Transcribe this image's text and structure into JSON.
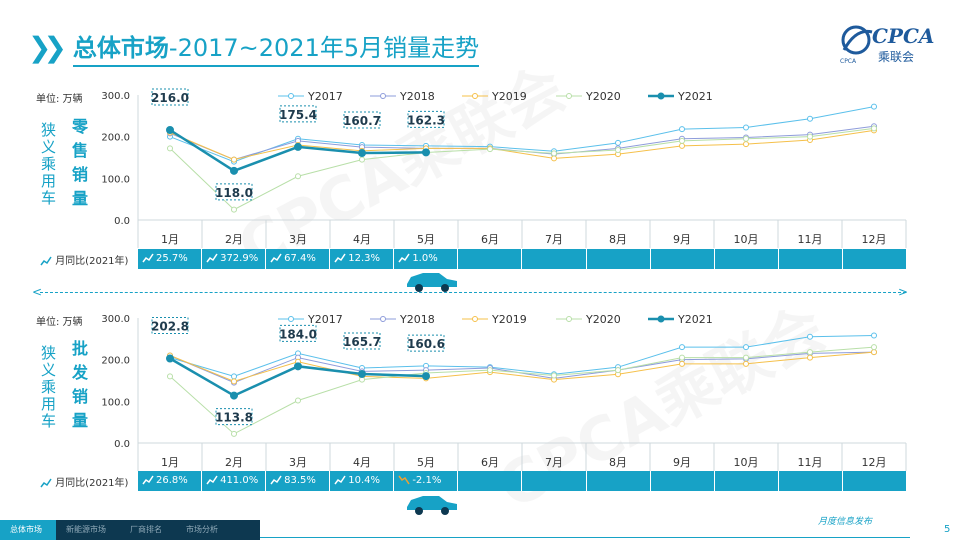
{
  "header": {
    "title_bold": "总体市场",
    "title_rest": "-2017~2021年5月销量走势",
    "logo_text": "CPCA",
    "logo_cn": "乘联会",
    "logo_small": "CPCA"
  },
  "watermark": "CPCA乘联会",
  "colors": {
    "accent": "#17a2c6",
    "dark": "#0d3850"
  },
  "icons": {
    "trend": "trend-up-icon",
    "trend_down": "trend-down-icon",
    "car": "car-icon"
  },
  "retail": {
    "unit_label": "单位: 万辆",
    "vertical_label": "狭义乘用车",
    "metric_label": "零售销量",
    "yoy_label": "月同比(2021年)",
    "yoy": [
      "25.7%",
      "372.9%",
      "67.4%",
      "12.3%",
      "1.0%",
      "",
      "",
      "",
      "",
      "",
      "",
      ""
    ],
    "yoy_dir": [
      "up",
      "up",
      "up",
      "up",
      "up",
      "",
      "",
      "",
      "",
      "",
      "",
      ""
    ]
  },
  "wholesale": {
    "unit_label": "单位: 万辆",
    "vertical_label": "狭义乘用车",
    "metric_label": "批发销量",
    "yoy_label": "月同比(2021年)",
    "yoy": [
      "26.8%",
      "411.0%",
      "83.5%",
      "10.4%",
      "-2.1%",
      "",
      "",
      "",
      "",
      "",
      "",
      ""
    ],
    "yoy_dir": [
      "up",
      "up",
      "up",
      "up",
      "down",
      "",
      "",
      "",
      "",
      "",
      "",
      ""
    ]
  },
  "chart_data": [
    {
      "type": "line",
      "categories": [
        "1月",
        "2月",
        "3月",
        "4月",
        "5月",
        "6月",
        "7月",
        "8月",
        "9月",
        "10月",
        "11月",
        "12月"
      ],
      "ylim": [
        0,
        300
      ],
      "yticks": [
        "0.0",
        "100.0",
        "200.0",
        "300.0"
      ],
      "legend_position": "top",
      "series": [
        {
          "name": "Y2017",
          "color": "#5bc0eb",
          "values": [
            200,
            140,
            195,
            180,
            178,
            176,
            165,
            185,
            218,
            222,
            243,
            272
          ]
        },
        {
          "name": "Y2018",
          "color": "#8e9cdb",
          "values": [
            208,
            145,
            190,
            175,
            172,
            172,
            158,
            172,
            195,
            198,
            205,
            225
          ]
        },
        {
          "name": "Y2019",
          "color": "#f5c04a",
          "values": [
            210,
            145,
            180,
            166,
            172,
            172,
            148,
            158,
            178,
            182,
            192,
            215
          ]
        },
        {
          "name": "Y2020",
          "color": "#b8dfa8",
          "values": [
            172,
            25,
            105,
            145,
            162,
            170,
            160,
            168,
            190,
            195,
            200,
            220
          ]
        },
        {
          "name": "Y2021",
          "color": "#1a8fae",
          "values": [
            216.0,
            118.0,
            175.4,
            160.7,
            162.3,
            null,
            null,
            null,
            null,
            null,
            null,
            null
          ],
          "labels": [
            "216.0",
            "118.0",
            "175.4",
            "160.7",
            "162.3"
          ]
        }
      ]
    },
    {
      "type": "line",
      "categories": [
        "1月",
        "2月",
        "3月",
        "4月",
        "5月",
        "6月",
        "7月",
        "8月",
        "9月",
        "10月",
        "11月",
        "12月"
      ],
      "ylim": [
        0,
        300
      ],
      "yticks": [
        "0.0",
        "100.0",
        "200.0",
        "300.0"
      ],
      "legend_position": "top",
      "series": [
        {
          "name": "Y2017",
          "color": "#5bc0eb",
          "values": [
            205,
            160,
            215,
            180,
            185,
            182,
            165,
            182,
            230,
            230,
            255,
            258
          ]
        },
        {
          "name": "Y2018",
          "color": "#8e9cdb",
          "values": [
            210,
            145,
            205,
            172,
            175,
            180,
            155,
            175,
            200,
            202,
            215,
            218
          ]
        },
        {
          "name": "Y2019",
          "color": "#f5c04a",
          "values": [
            210,
            148,
            195,
            160,
            155,
            170,
            152,
            165,
            190,
            190,
            205,
            218
          ]
        },
        {
          "name": "Y2020",
          "color": "#b8dfa8",
          "values": [
            160,
            22,
            102,
            152,
            168,
            175,
            162,
            175,
            205,
            205,
            218,
            230
          ]
        },
        {
          "name": "Y2021",
          "color": "#1a8fae",
          "values": [
            202.8,
            113.8,
            184.0,
            165.7,
            160.6,
            null,
            null,
            null,
            null,
            null,
            null,
            null
          ],
          "labels": [
            "202.8",
            "113.8",
            "184.0",
            "165.7",
            "160.6"
          ]
        }
      ]
    }
  ],
  "footer": {
    "nav": [
      "总体市场",
      "新能源市场",
      "厂商排名",
      "市场分析"
    ],
    "text": "月度信息发布",
    "page": "5"
  }
}
